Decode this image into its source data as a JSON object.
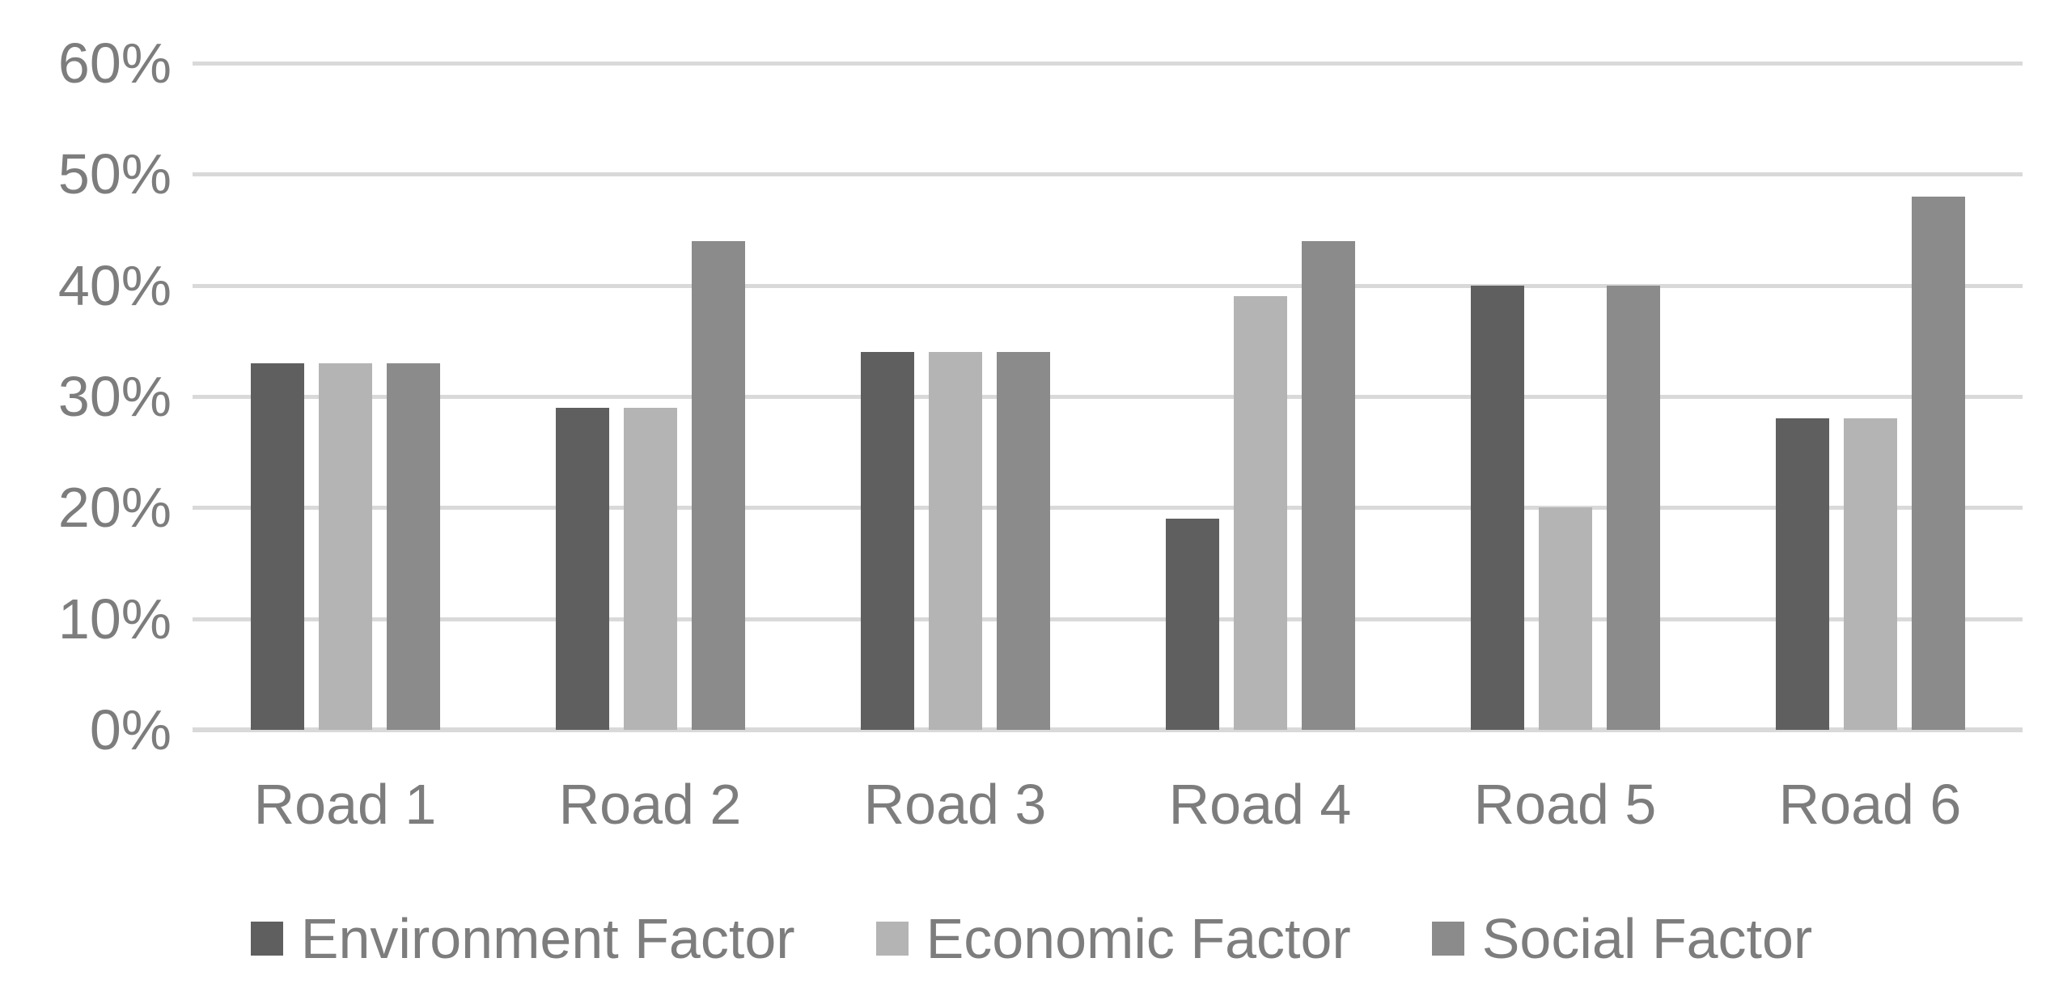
{
  "chart_data": {
    "type": "bar",
    "title": "",
    "categories": [
      "Road 1",
      "Road 2",
      "Road 3",
      "Road 4",
      "Road 5",
      "Road 6"
    ],
    "series": [
      {
        "name": "Environment Factor",
        "color": "#5f5f5f",
        "values": [
          33,
          29,
          34,
          19,
          40,
          28
        ]
      },
      {
        "name": "Economic Factor",
        "color": "#b4b4b4",
        "values": [
          33,
          29,
          34,
          39,
          20,
          28
        ]
      },
      {
        "name": "Social Factor",
        "color": "#8b8b8b",
        "values": [
          33,
          44,
          34,
          44,
          40,
          48
        ]
      }
    ],
    "unit": "%",
    "y_axis": {
      "min": 0,
      "max": 60,
      "step": 10,
      "tick_labels_top_to_bottom": [
        "60%",
        "50%",
        "40%",
        "30%",
        "20%",
        "10%",
        "0%"
      ]
    },
    "grid": true,
    "legend_position": "bottom",
    "colors": {
      "gridline": "#d9d9d9",
      "text": "#7d7d7d",
      "background": "#ffffff"
    }
  }
}
